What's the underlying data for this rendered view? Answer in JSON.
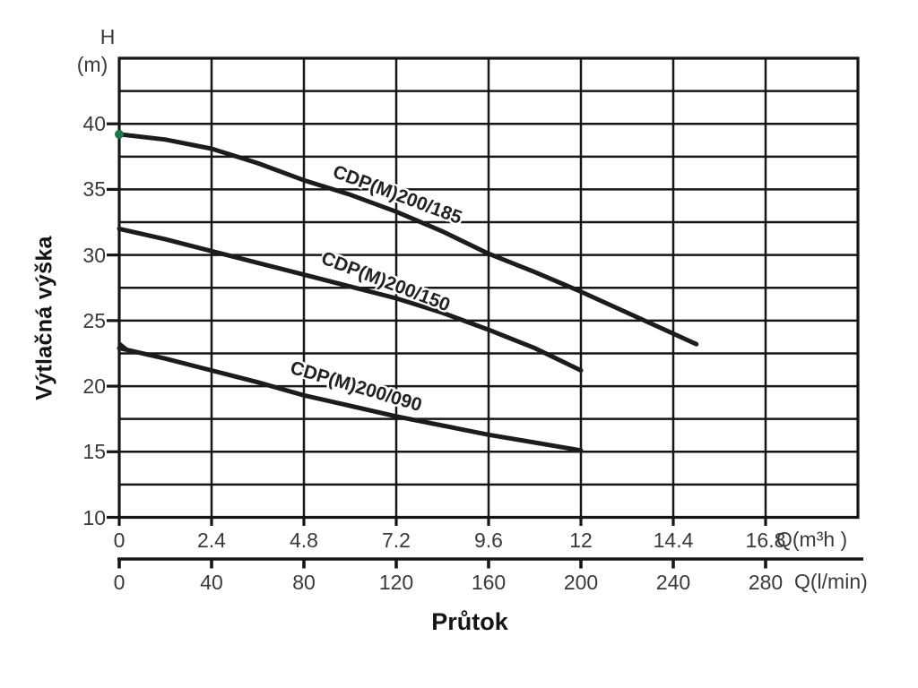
{
  "chart_data": {
    "type": "line",
    "title": "",
    "xlabel": "Průtok",
    "ylabel": "Výtlačná výška",
    "grid": true,
    "legend": "none",
    "y_axis": {
      "name": "H",
      "unit": "(m)",
      "ticks": [
        "40",
        "35",
        "30",
        "25",
        "20",
        "15",
        "10"
      ],
      "tick_values": [
        40,
        35,
        30,
        25,
        20,
        15,
        10
      ],
      "range": [
        10,
        45
      ],
      "grid_step": 2.5
    },
    "x_axis_m3h": {
      "unit_label": "Q(m³h )",
      "ticks": [
        "0",
        "2.4",
        "4.8",
        "7.2",
        "9.6",
        "12",
        "14.4",
        "16.8"
      ],
      "tick_values": [
        0,
        2.4,
        4.8,
        7.2,
        9.6,
        12,
        14.4,
        16.8
      ],
      "range": [
        0,
        19.2
      ],
      "grid_step": 2.4
    },
    "x_axis_lmin": {
      "unit_label": "Q(l/min)",
      "ticks": [
        "0",
        "40",
        "80",
        "120",
        "160",
        "200",
        "240",
        "280"
      ]
    },
    "series": [
      {
        "id": "cdpm-200-185",
        "name": "CDP(M)200/185",
        "points": [
          [
            0,
            39.2
          ],
          [
            1.2,
            38.8
          ],
          [
            2.4,
            38.1
          ],
          [
            3.6,
            37.0
          ],
          [
            4.8,
            35.7
          ],
          [
            6,
            34.6
          ],
          [
            7.2,
            33.3
          ],
          [
            8.4,
            31.8
          ],
          [
            9.6,
            30.1
          ],
          [
            10.8,
            28.7
          ],
          [
            12,
            27.2
          ],
          [
            13.5,
            25.2
          ],
          [
            15,
            23.2
          ]
        ]
      },
      {
        "id": "cdpm-200-150",
        "name": "CDP(M)200/150",
        "points": [
          [
            0,
            32.0
          ],
          [
            1.2,
            31.2
          ],
          [
            2.4,
            30.3
          ],
          [
            3.6,
            29.4
          ],
          [
            4.8,
            28.5
          ],
          [
            6,
            27.6
          ],
          [
            7.2,
            26.7
          ],
          [
            8.4,
            25.6
          ],
          [
            9.6,
            24.3
          ],
          [
            10.8,
            22.9
          ],
          [
            12,
            21.2
          ]
        ]
      },
      {
        "id": "cdpm-200-090",
        "name": "CDP(M)200/090",
        "points": [
          [
            0,
            22.9
          ],
          [
            1.2,
            22.1
          ],
          [
            2.4,
            21.2
          ],
          [
            3.6,
            20.3
          ],
          [
            4.8,
            19.3
          ],
          [
            6,
            18.5
          ],
          [
            7.2,
            17.7
          ],
          [
            8.4,
            17.0
          ],
          [
            9.6,
            16.3
          ],
          [
            10.8,
            15.7
          ],
          [
            12,
            15.1
          ]
        ]
      }
    ],
    "colors": {
      "curve": "#1c1c1c",
      "grid": "#161616",
      "start_dot": "#1b7a45",
      "text": "#3a3a3a"
    }
  }
}
